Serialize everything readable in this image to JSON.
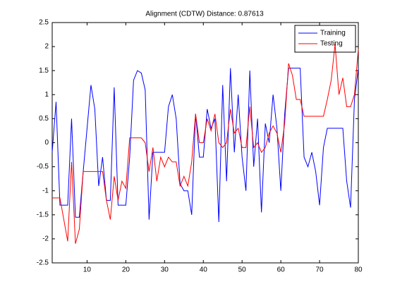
{
  "chart_data": {
    "type": "line",
    "title": "Alignment (CDTW) Distance: 0.87613",
    "x": [
      1,
      2,
      3,
      4,
      5,
      6,
      7,
      8,
      9,
      10,
      11,
      12,
      13,
      14,
      15,
      16,
      17,
      18,
      19,
      20,
      21,
      22,
      23,
      24,
      25,
      26,
      27,
      28,
      29,
      30,
      31,
      32,
      33,
      34,
      35,
      36,
      37,
      38,
      39,
      40,
      41,
      42,
      43,
      44,
      45,
      46,
      47,
      48,
      49,
      50,
      51,
      52,
      53,
      54,
      55,
      56,
      57,
      58,
      59,
      60,
      61,
      62,
      63,
      64,
      65,
      66,
      67,
      68,
      69,
      70,
      71,
      72,
      73,
      74,
      75,
      76,
      77,
      78,
      79,
      80
    ],
    "series": [
      {
        "name": "Training",
        "color": "#0000ff",
        "values": [
          -0.2,
          0.85,
          -1.3,
          -1.3,
          -1.3,
          0.5,
          -1.55,
          -1.55,
          -0.6,
          0.3,
          1.2,
          0.7,
          -0.9,
          -0.3,
          -1.2,
          -1.2,
          1.15,
          -1.3,
          -1.3,
          -1.3,
          -0.3,
          1.3,
          1.5,
          1.45,
          1.1,
          -1.6,
          -0.2,
          -0.2,
          -0.2,
          -0.2,
          0.75,
          1.0,
          0.5,
          -0.85,
          -1.0,
          -1.0,
          -1.5,
          0.6,
          -0.3,
          -0.3,
          0.7,
          0.3,
          0.5,
          -1.65,
          1.2,
          -0.8,
          1.55,
          -0.2,
          1.0,
          -0.3,
          -1.0,
          1.5,
          -0.5,
          0.5,
          -1.45,
          0.4,
          0.0,
          1.0,
          0.3,
          -1.0,
          0.6,
          1.55,
          1.55,
          1.55,
          1.55,
          -0.3,
          -0.5,
          -0.2,
          -0.6,
          -1.3,
          -0.1,
          0.3,
          0.3,
          0.3,
          0.3,
          0.3,
          -0.8,
          -1.35,
          0.9,
          1.55
        ]
      },
      {
        "name": "Testing",
        "color": "#ff0000",
        "values": [
          -1.15,
          -1.15,
          -1.15,
          -1.6,
          -2.05,
          -0.4,
          -2.1,
          -1.8,
          -0.6,
          -0.6,
          -0.6,
          -0.6,
          -0.6,
          -0.6,
          -1.2,
          -1.6,
          -0.7,
          -1.2,
          -0.8,
          -0.95,
          0.1,
          0.1,
          0.1,
          0.1,
          0.0,
          -0.6,
          -0.1,
          -0.8,
          -0.3,
          -0.5,
          -0.3,
          -0.4,
          -0.4,
          -0.9,
          -0.7,
          -0.9,
          -0.4,
          0.6,
          0.0,
          0.0,
          0.5,
          0.25,
          0.6,
          0.0,
          -0.1,
          0.0,
          0.7,
          0.2,
          0.3,
          -0.1,
          -0.1,
          0.75,
          -0.1,
          0.0,
          -0.2,
          -0.1,
          0.2,
          0.35,
          0.2,
          -0.2,
          0.4,
          1.65,
          1.4,
          0.9,
          0.9,
          0.55,
          0.55,
          0.55,
          0.55,
          0.55,
          0.55,
          0.9,
          1.3,
          2.05,
          1.0,
          1.35,
          0.75,
          0.75,
          1.0,
          1.95
        ]
      }
    ],
    "xlim": [
      1,
      80
    ],
    "xticks": [
      10,
      20,
      30,
      40,
      50,
      60,
      70,
      80
    ],
    "ylim": [
      -2.5,
      2.5
    ],
    "yticks": [
      -2.5,
      -2,
      -1.5,
      -1,
      -0.5,
      0,
      0.5,
      1,
      1.5,
      2,
      2.5
    ],
    "grid": false,
    "legend": "northeast"
  }
}
